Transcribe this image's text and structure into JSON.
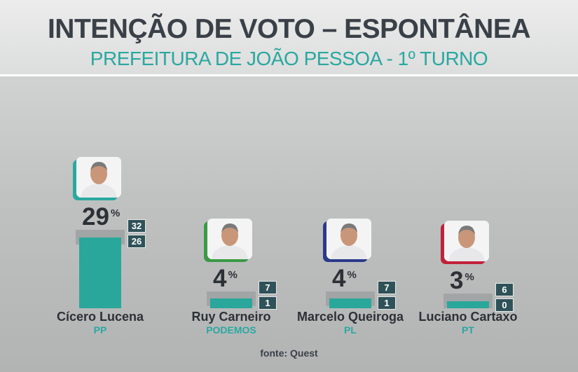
{
  "header": {
    "title": "INTENÇÃO DE VOTO – ESPONTÂNEA",
    "subtitle": "PREFEITURA DE JOÃO PESSOA - 1º TURNO"
  },
  "source": "fonte: Quest",
  "chart_data": {
    "type": "bar",
    "title": "INTENÇÃO DE VOTO – ESPONTÂNEA",
    "subtitle": "PREFEITURA DE JOÃO PESSOA - 1º TURNO",
    "categories": [
      "Cícero Lucena",
      "Ruy Carneiro",
      "Marcelo Queiroga",
      "Luciano Cartaxo"
    ],
    "parties": [
      "PP",
      "PODEMOS",
      "PL",
      "PT"
    ],
    "values": [
      29,
      4,
      4,
      3
    ],
    "upper": [
      32,
      7,
      7,
      6
    ],
    "lower": [
      26,
      1,
      1,
      0
    ],
    "unit": "%",
    "frame_colors": [
      "#2aa8a0",
      "#3a9a45",
      "#2b3a8a",
      "#c0223a"
    ],
    "bar_color": "#2aa79b",
    "margin_color": "#a2a5a6",
    "source": "fonte: Quest"
  }
}
